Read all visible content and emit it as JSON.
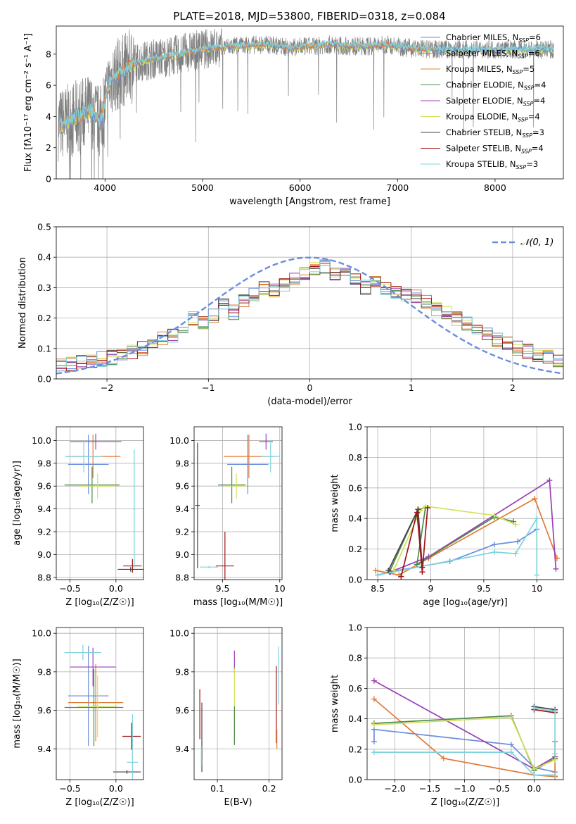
{
  "page": {
    "title": "PLATE=2018, MJD=53800, FIBERID=0318, z=0.084"
  },
  "models": [
    {
      "name": "Chabrier MILES",
      "nssp": "6",
      "color": "#6a8edd"
    },
    {
      "name": "Salpeter MILES",
      "nssp": "6",
      "color": "#e07b39"
    },
    {
      "name": "Kroupa MILES",
      "nssp": "5",
      "color": "#e0852e"
    },
    {
      "name": "Chabrier ELODIE",
      "nssp": "4",
      "color": "#4c8a4c"
    },
    {
      "name": "Salpeter ELODIE",
      "nssp": "4",
      "color": "#9b3fb5"
    },
    {
      "name": "Kroupa ELODIE",
      "nssp": "4",
      "color": "#d4e05a"
    },
    {
      "name": "Chabrier STELIB",
      "nssp": "3",
      "color": "#444444"
    },
    {
      "name": "Salpeter STELIB",
      "nssp": "4",
      "color": "#a01414"
    },
    {
      "name": "Kroupa STELIB",
      "nssp": "3",
      "color": "#7fd3dd"
    }
  ],
  "chart_data": [
    {
      "id": "spectrum",
      "type": "line",
      "xlabel": "wavelength [Angstrom, rest frame]",
      "ylabel": "Flux [fλ10⁻¹⁷ erg cm⁻² s⁻¹ A⁻¹]",
      "xlim": [
        3500,
        8700
      ],
      "ylim": [
        0,
        9.8
      ],
      "xticks": [
        4000,
        5000,
        6000,
        7000,
        8000
      ],
      "yticks": [
        0,
        2,
        4,
        6,
        8
      ],
      "legend": "right",
      "grid": false,
      "series_x": [
        3550,
        3650,
        3750,
        3850,
        3950,
        4050,
        4150,
        4250,
        4350,
        4500,
        4700,
        4900,
        5100,
        5300,
        5500,
        5700,
        5900,
        6100,
        6300,
        6500,
        6700,
        6900,
        7100,
        7300,
        7450
      ],
      "model_flux": [
        3.5,
        3.8,
        4.1,
        4.4,
        3.6,
        6.3,
        6.8,
        7.2,
        7.5,
        7.7,
        7.9,
        8.2,
        8.4,
        8.5,
        8.6,
        8.6,
        8.4,
        8.5,
        8.6,
        8.5,
        8.5,
        8.6,
        8.4,
        8.3,
        8.3
      ],
      "data_color": "#808080"
    },
    {
      "id": "residuals",
      "type": "line",
      "xlabel": "(data-model)/error",
      "ylabel": "Normed distribution",
      "xlim": [
        -2.5,
        2.5
      ],
      "ylim": [
        0,
        0.5
      ],
      "xticks": [
        -2,
        -1,
        0,
        1,
        2
      ],
      "yticks": [
        0.0,
        0.1,
        0.2,
        0.3,
        0.4,
        0.5
      ],
      "grid": true,
      "legend": "top-right",
      "legend_label": "𝒩(0, 1)",
      "gaussian_color": "#6a8edd",
      "bin_edges_start": -2.5,
      "bin_width": 0.1,
      "hist_base": [
        0.045,
        0.05,
        0.055,
        0.06,
        0.065,
        0.07,
        0.08,
        0.09,
        0.1,
        0.115,
        0.13,
        0.145,
        0.165,
        0.2,
        0.18,
        0.21,
        0.24,
        0.22,
        0.26,
        0.28,
        0.3,
        0.29,
        0.31,
        0.33,
        0.35,
        0.36,
        0.37,
        0.35,
        0.36,
        0.33,
        0.3,
        0.32,
        0.3,
        0.29,
        0.28,
        0.27,
        0.25,
        0.23,
        0.22,
        0.2,
        0.18,
        0.16,
        0.15,
        0.13,
        0.12,
        0.1,
        0.09,
        0.08,
        0.07,
        0.06
      ]
    },
    {
      "id": "age-vs-z",
      "type": "scatter",
      "xlabel": "Z [log₁₀(Z/Z☉)]",
      "ylabel": "age  [log₁₀(age/yr)]",
      "xlim": [
        -0.65,
        0.3
      ],
      "ylim": [
        8.78,
        10.12
      ],
      "xticks": [
        -0.5,
        0.0
      ],
      "xticklabels": [
        "−0.5",
        "0.0"
      ],
      "yticks": [
        8.8,
        9.0,
        9.2,
        9.4,
        9.6,
        9.8,
        10.0
      ],
      "grid": true,
      "points": [
        {
          "x": -0.3,
          "y": 9.79,
          "xerr": 0.22,
          "yerr": 0.26,
          "m": 0
        },
        {
          "x": -0.25,
          "y": 9.86,
          "xerr": 0.3,
          "yerr": 0.19,
          "m": 1
        },
        {
          "x": -0.22,
          "y": 9.99,
          "xerr": 0.28,
          "yerr": 0.07,
          "m": 4
        },
        {
          "x": -0.26,
          "y": 9.61,
          "xerr": 0.3,
          "yerr": 0.16,
          "m": 3
        },
        {
          "x": -0.2,
          "y": 9.6,
          "xerr": 0.2,
          "yerr": 0.11,
          "m": 5
        },
        {
          "x": -0.35,
          "y": 9.86,
          "xerr": 0.2,
          "yerr": 0.14,
          "m": 8
        },
        {
          "x": 0.16,
          "y": 8.87,
          "xerr": 0.14,
          "yerr": 0.02,
          "m": 6
        },
        {
          "x": 0.18,
          "y": 8.9,
          "xerr": 0.1,
          "yerr": 0.06,
          "m": 7
        },
        {
          "x": 0.2,
          "y": 9.4,
          "xerr": 0.02,
          "yerr": 0.52,
          "m": 8
        }
      ]
    },
    {
      "id": "age-vs-mass",
      "type": "scatter",
      "xlabel": "mass [log₁₀(M/M☉)]",
      "ylabel": "",
      "xlim": [
        9.25,
        10.02
      ],
      "ylim": [
        8.78,
        10.12
      ],
      "xticks": [
        9.5,
        10.0
      ],
      "yticks": [
        8.8,
        9.0,
        9.2,
        9.4,
        9.6,
        9.8,
        10.0
      ],
      "grid": true,
      "points": [
        {
          "x": 9.72,
          "y": 9.79,
          "xerr": 0.18,
          "yerr": 0.26,
          "m": 0
        },
        {
          "x": 9.73,
          "y": 9.86,
          "xerr": 0.22,
          "yerr": 0.19,
          "m": 1
        },
        {
          "x": 9.88,
          "y": 9.99,
          "xerr": 0.06,
          "yerr": 0.07,
          "m": 4
        },
        {
          "x": 9.58,
          "y": 9.61,
          "xerr": 0.12,
          "yerr": 0.16,
          "m": 3
        },
        {
          "x": 9.62,
          "y": 9.6,
          "xerr": 0.09,
          "yerr": 0.11,
          "m": 5
        },
        {
          "x": 9.92,
          "y": 9.86,
          "xerr": 0.08,
          "yerr": 0.14,
          "m": 8
        },
        {
          "x": 9.28,
          "y": 9.43,
          "xerr": 0.02,
          "yerr": 0.55,
          "m": 6
        },
        {
          "x": 9.52,
          "y": 8.9,
          "xerr": 0.08,
          "yerr": 0.3,
          "m": 7
        },
        {
          "x": 9.38,
          "y": 8.89,
          "xerr": 0.08,
          "yerr": 0.01,
          "m": 8
        }
      ]
    },
    {
      "id": "weight-vs-age",
      "type": "line",
      "xlabel": "age  [log₁₀(age/yr)]",
      "ylabel": "mass weight",
      "xlim": [
        8.4,
        10.25
      ],
      "ylim": [
        0,
        1
      ],
      "xticks": [
        8.5,
        9.0,
        9.5,
        10.0
      ],
      "yticks": [
        0.0,
        0.2,
        0.4,
        0.6,
        0.8,
        1.0
      ],
      "grid": true,
      "series": [
        {
          "m": 0,
          "x": [
            8.5,
            8.61,
            9.18,
            9.6,
            9.82,
            10.0
          ],
          "y": [
            0.03,
            0.05,
            0.12,
            0.23,
            0.25,
            0.33
          ]
        },
        {
          "m": 1,
          "x": [
            8.48,
            8.7,
            8.98,
            9.98,
            10.19
          ],
          "y": [
            0.06,
            0.03,
            0.14,
            0.53,
            0.14
          ]
        },
        {
          "m": 4,
          "x": [
            8.62,
            8.98,
            10.12,
            10.18
          ],
          "y": [
            0.05,
            0.15,
            0.65,
            0.07
          ]
        },
        {
          "m": 3,
          "x": [
            8.61,
            8.88,
            8.95,
            8.87,
            9.6,
            9.78
          ],
          "y": [
            0.05,
            0.46,
            0.47,
            0.1,
            0.41,
            0.38
          ]
        },
        {
          "m": 5,
          "x": [
            8.65,
            8.9,
            8.95,
            9.6,
            9.8
          ],
          "y": [
            0.06,
            0.45,
            0.48,
            0.42,
            0.36
          ]
        },
        {
          "m": 8,
          "x": [
            8.5,
            9.6,
            9.8,
            10.0,
            10.0
          ],
          "y": [
            0.03,
            0.18,
            0.17,
            0.4,
            0.03
          ]
        },
        {
          "m": 6,
          "x": [
            8.6,
            8.88,
            8.92
          ],
          "y": [
            0.06,
            0.46,
            0.08
          ]
        },
        {
          "m": 7,
          "x": [
            8.72,
            8.87,
            8.92,
            8.97
          ],
          "y": [
            0.02,
            0.44,
            0.05,
            0.47
          ]
        }
      ]
    },
    {
      "id": "mass-vs-z",
      "type": "scatter",
      "xlabel": "Z [log₁₀(Z/Z☉)]",
      "ylabel": "mass [log₁₀(M/M☉)]",
      "xlim": [
        -0.65,
        0.3
      ],
      "ylim": [
        9.24,
        10.03
      ],
      "xticks": [
        -0.5,
        0.0
      ],
      "xticklabels": [
        "−0.5",
        "0.0"
      ],
      "yticks": [
        9.4,
        9.6,
        9.8,
        10.0
      ],
      "grid": true,
      "points": [
        {
          "x": -0.3,
          "y": 9.675,
          "xerr": 0.22,
          "yerr": 0.26,
          "m": 0
        },
        {
          "x": -0.22,
          "y": 9.64,
          "xerr": 0.3,
          "yerr": 0.2,
          "m": 1
        },
        {
          "x": -0.25,
          "y": 9.825,
          "xerr": 0.25,
          "yerr": 0.1,
          "m": 4
        },
        {
          "x": -0.24,
          "y": 9.615,
          "xerr": 0.32,
          "yerr": 0.2,
          "m": 3
        },
        {
          "x": -0.2,
          "y": 9.62,
          "xerr": 0.22,
          "yerr": 0.16,
          "m": 5
        },
        {
          "x": -0.36,
          "y": 9.9,
          "xerr": 0.2,
          "yerr": 0.04,
          "m": 8
        },
        {
          "x": 0.12,
          "y": 9.28,
          "xerr": 0.15,
          "yerr": 0.01,
          "m": 6
        },
        {
          "x": 0.17,
          "y": 9.465,
          "xerr": 0.1,
          "yerr": 0.07,
          "m": 7
        },
        {
          "x": 0.18,
          "y": 9.33,
          "xerr": 0.06,
          "yerr": 0.25,
          "m": 8
        }
      ]
    },
    {
      "id": "mass-vs-ebv",
      "type": "scatter",
      "xlabel": "E(B-V)",
      "ylabel": "",
      "xlim": [
        0.055,
        0.225
      ],
      "ylim": [
        9.24,
        10.03
      ],
      "xticks": [
        0.1,
        0.2
      ],
      "yticks": [
        9.4,
        9.6,
        9.8,
        10.0
      ],
      "grid": true,
      "points": [
        {
          "x": 0.066,
          "y": 9.58,
          "xerr": 0.0,
          "yerr": 0.13,
          "m": 7
        },
        {
          "x": 0.07,
          "y": 9.46,
          "xerr": 0.0,
          "yerr": 0.18,
          "m": 6
        },
        {
          "x": 0.069,
          "y": 9.36,
          "xerr": 0.0,
          "yerr": 0.05,
          "m": 8
        },
        {
          "x": 0.133,
          "y": 9.85,
          "xerr": 0.0,
          "yerr": 0.06,
          "m": 4
        },
        {
          "x": 0.133,
          "y": 9.62,
          "xerr": 0.0,
          "yerr": 0.2,
          "m": 5
        },
        {
          "x": 0.133,
          "y": 9.52,
          "xerr": 0.0,
          "yerr": 0.1,
          "m": 3
        },
        {
          "x": 0.214,
          "y": 9.63,
          "xerr": 0.0,
          "yerr": 0.2,
          "m": 7
        },
        {
          "x": 0.218,
          "y": 9.78,
          "xerr": 0.0,
          "yerr": 0.15,
          "m": 8
        },
        {
          "x": 0.215,
          "y": 9.45,
          "xerr": 0.0,
          "yerr": 0.05,
          "m": 1
        }
      ]
    },
    {
      "id": "weight-vs-z",
      "type": "line",
      "xlabel": "Z [log₁₀(Z/Z☉)]",
      "ylabel": "mass weight",
      "xlim": [
        -2.4,
        0.42
      ],
      "ylim": [
        0,
        1
      ],
      "xticks": [
        -2.0,
        -1.5,
        -1.0,
        -0.5,
        0.0
      ],
      "xticklabels": [
        "−2.0",
        "−1.5",
        "−1.0",
        "−0.5",
        "0.0"
      ],
      "yticks": [
        0.0,
        0.2,
        0.4,
        0.6,
        0.8,
        1.0
      ],
      "grid": true,
      "series": [
        {
          "m": 0,
          "x": [
            -2.3,
            -2.3,
            -0.33,
            0.0,
            0.3
          ],
          "y": [
            0.25,
            0.33,
            0.23,
            0.08,
            0.05
          ]
        },
        {
          "m": 1,
          "x": [
            -2.3,
            -1.3,
            0.0,
            0.3,
            0.3
          ],
          "y": [
            0.53,
            0.14,
            0.03,
            0.02,
            0.25
          ]
        },
        {
          "m": 4,
          "x": [
            -2.3,
            0.0,
            0.3
          ],
          "y": [
            0.65,
            0.07,
            0.15
          ]
        },
        {
          "m": 3,
          "x": [
            -2.3,
            -0.33,
            0.0,
            0.3
          ],
          "y": [
            0.37,
            0.42,
            0.06,
            0.14
          ]
        },
        {
          "m": 5,
          "x": [
            -2.3,
            -0.33,
            0.0,
            0.3
          ],
          "y": [
            0.36,
            0.41,
            0.07,
            0.13
          ]
        },
        {
          "m": 8,
          "x": [
            -2.3,
            -0.33,
            0.0,
            0.3
          ],
          "y": [
            0.18,
            0.18,
            0.03,
            0.03
          ]
        },
        {
          "m": 6,
          "x": [
            0.0,
            0.3
          ],
          "y": [
            0.48,
            0.46
          ]
        },
        {
          "m": 7,
          "x": [
            0.0,
            0.3
          ],
          "y": [
            0.46,
            0.44
          ]
        },
        {
          "m": 8,
          "x": [
            0.0,
            0.3,
            0.3
          ],
          "y": [
            0.47,
            0.45,
            0.17
          ]
        }
      ]
    }
  ]
}
